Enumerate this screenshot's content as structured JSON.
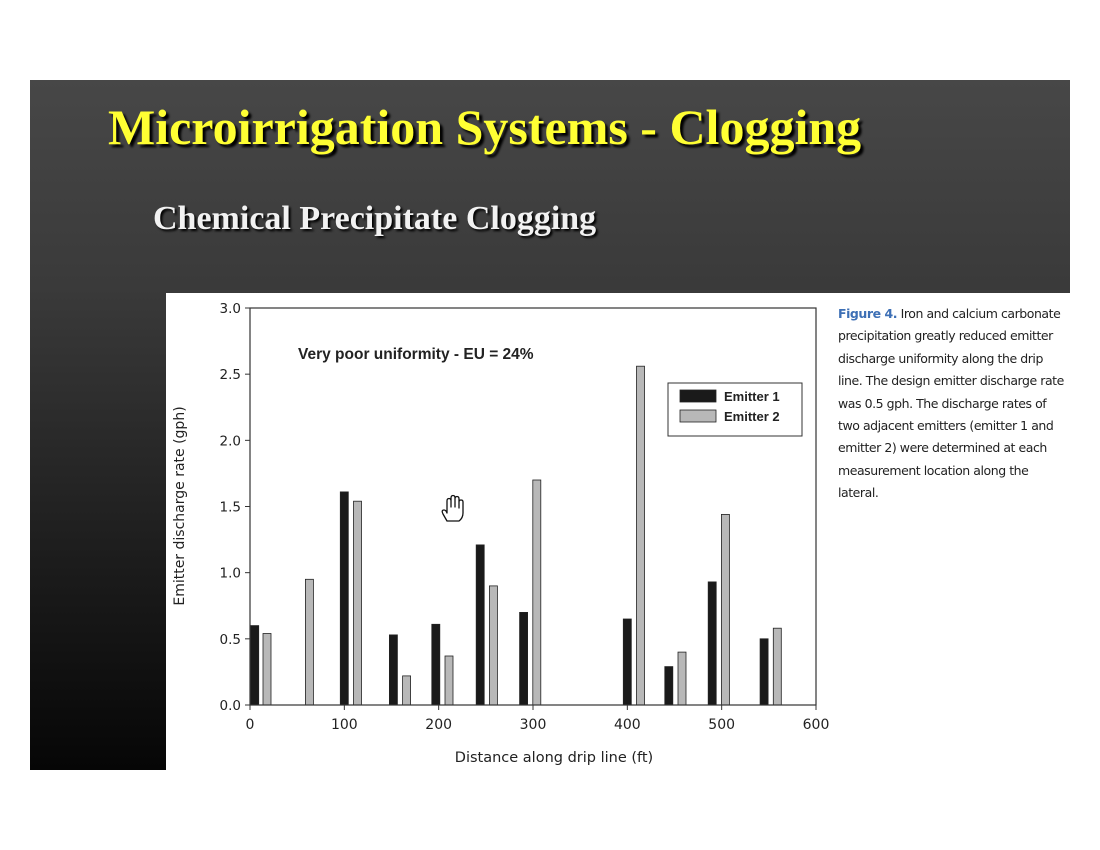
{
  "slide": {
    "title": "Microirrigation Systems - Clogging",
    "subtitle": "Chemical Precipitate Clogging"
  },
  "caption": {
    "label": "Figure 4.",
    "text": "Iron and calcium carbonate precipitation greatly reduced emitter discharge uniformity along the drip line. The design emitter discharge rate was 0.5 gph. The discharge rates of two adjacent emitters (emitter 1 and emitter 2) were determined at each measurement location along the lateral."
  },
  "cursor": {
    "icon": "hand-cursor-icon"
  },
  "chart_data": {
    "type": "bar",
    "title": "",
    "annotation": "Very poor uniformity - EU = 24%",
    "xlabel": "Distance along drip line (ft)",
    "ylabel": "Emitter discharge rate (gph)",
    "xlim": [
      0,
      600
    ],
    "ylim": [
      0,
      3.0
    ],
    "xticks": [
      0,
      100,
      200,
      300,
      400,
      500,
      600
    ],
    "yticks": [
      0.0,
      0.5,
      1.0,
      1.5,
      2.0,
      2.5,
      3.0
    ],
    "xtick_labels": [
      "0",
      "100",
      "200",
      "300",
      "400",
      "500",
      "600"
    ],
    "ytick_labels": [
      "0.0",
      "0.5",
      "1.0",
      "1.5",
      "2.0",
      "2.5",
      "3.0"
    ],
    "grid": false,
    "legend_position": "top-right",
    "series": [
      {
        "name": "Emitter 1",
        "color": "#1a1a1a",
        "points": [
          {
            "x": 5,
            "y": 0.6
          },
          {
            "x": 100,
            "y": 1.61
          },
          {
            "x": 152,
            "y": 0.53
          },
          {
            "x": 197,
            "y": 0.61
          },
          {
            "x": 244,
            "y": 1.21
          },
          {
            "x": 290,
            "y": 0.7
          },
          {
            "x": 400,
            "y": 0.65
          },
          {
            "x": 444,
            "y": 0.29
          },
          {
            "x": 490,
            "y": 0.93
          },
          {
            "x": 545,
            "y": 0.5
          }
        ]
      },
      {
        "name": "Emitter 2",
        "color": "#b8b8b8",
        "points": [
          {
            "x": 18,
            "y": 0.54
          },
          {
            "x": 63,
            "y": 0.95
          },
          {
            "x": 114,
            "y": 1.54
          },
          {
            "x": 166,
            "y": 0.22
          },
          {
            "x": 211,
            "y": 0.37
          },
          {
            "x": 258,
            "y": 0.9
          },
          {
            "x": 304,
            "y": 1.7
          },
          {
            "x": 414,
            "y": 2.56
          },
          {
            "x": 458,
            "y": 0.4
          },
          {
            "x": 504,
            "y": 1.44
          },
          {
            "x": 559,
            "y": 0.58
          }
        ]
      }
    ]
  }
}
